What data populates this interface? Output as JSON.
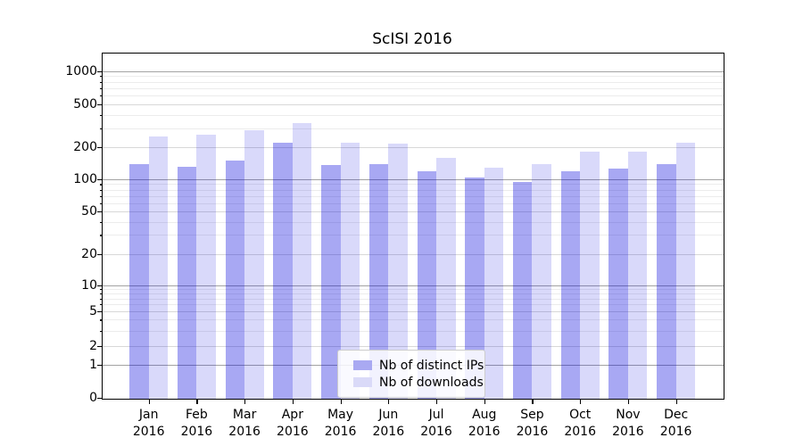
{
  "figure": {
    "title": "ScISI 2016",
    "background": "#ffffff"
  },
  "colors": {
    "ips_bar": "rgba(0,0,220,0.34)",
    "downloads_bar": "rgba(0,0,220,0.15)",
    "ips_swatch": "#a9a9f2",
    "downloads_swatch": "#dadaf8",
    "grid_major": "#a3a3a3",
    "grid_mid": "#d8d8d8",
    "grid_minor": "#ececec"
  },
  "chart_data": {
    "type": "bar",
    "title": "ScISI 2016",
    "categories": [
      "Jan 2016",
      "Feb 2016",
      "Mar 2016",
      "Apr 2016",
      "May 2016",
      "Jun 2016",
      "Jul 2016",
      "Aug 2016",
      "Sep 2016",
      "Oct 2016",
      "Nov 2016",
      "Dec 2016"
    ],
    "x_tick_months": [
      "Jan",
      "Feb",
      "Mar",
      "Apr",
      "May",
      "Jun",
      "Jul",
      "Aug",
      "Sep",
      "Oct",
      "Nov",
      "Dec"
    ],
    "x_tick_year": "2016",
    "series": [
      {
        "name": "Nb of distinct IPs",
        "values": [
          140,
          130,
          150,
          220,
          135,
          140,
          120,
          103,
          94,
          120,
          125,
          138
        ]
      },
      {
        "name": "Nb of downloads",
        "values": [
          250,
          260,
          285,
          335,
          220,
          215,
          160,
          128,
          140,
          180,
          180,
          220
        ]
      }
    ],
    "ylabel": "",
    "xlabel": "",
    "yscale": "symlog",
    "y_ticks": [
      0,
      1,
      2,
      5,
      10,
      20,
      50,
      100,
      200,
      500,
      1000
    ],
    "y_minor_ticks": [
      3,
      4,
      6,
      7,
      8,
      9,
      30,
      40,
      60,
      70,
      80,
      90,
      300,
      400,
      600,
      700,
      800,
      900
    ],
    "ylim": [
      0,
      1450
    ],
    "grid": true,
    "legend_position": "lower center"
  }
}
